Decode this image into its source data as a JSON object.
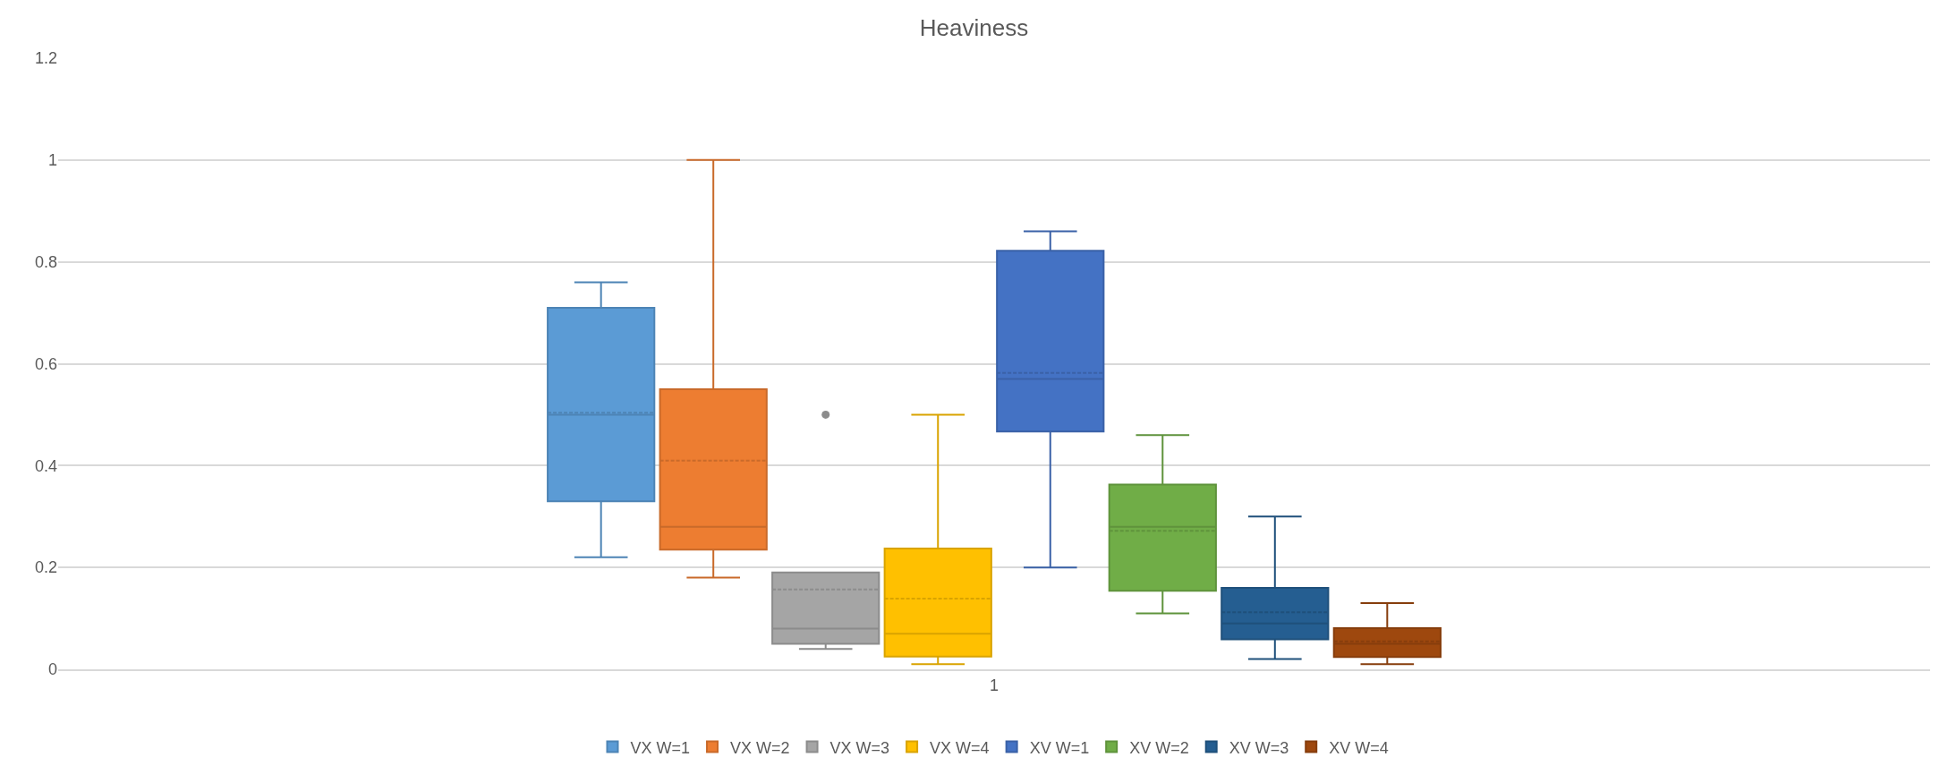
{
  "chart_data": {
    "type": "box",
    "title": "Heaviness",
    "categories": [
      "1"
    ],
    "ylim": [
      0,
      1.2
    ],
    "yticks": [
      0,
      0.2,
      0.4,
      0.6,
      0.8,
      1,
      1.2
    ],
    "grid": "y",
    "legend": "bottom",
    "series": [
      {
        "name": "VX W=1",
        "color": "#5b9bd5",
        "boxes": [
          {
            "low": 0.22,
            "q1": 0.33,
            "median": 0.5,
            "q3": 0.71,
            "high": 0.76,
            "mean": 0.504
          }
        ]
      },
      {
        "name": "VX W=2",
        "color": "#ed7d31",
        "boxes": [
          {
            "low": 0.18,
            "q1": 0.235,
            "median": 0.28,
            "q3": 0.55,
            "high": 1.0,
            "mean": 0.41
          }
        ]
      },
      {
        "name": "VX W=3",
        "color": "#a5a5a5",
        "boxes": [
          {
            "low": 0.04,
            "q1": 0.05,
            "median": 0.08,
            "q3": 0.19,
            "high": 0.19,
            "mean": 0.157,
            "outliers": [
              0.5
            ]
          }
        ]
      },
      {
        "name": "VX W=4",
        "color": "#ffc000",
        "boxes": [
          {
            "low": 0.01,
            "q1": 0.025,
            "median": 0.07,
            "q3": 0.237,
            "high": 0.5,
            "mean": 0.139
          }
        ]
      },
      {
        "name": "XV W=1",
        "color": "#4472c4",
        "boxes": [
          {
            "low": 0.2,
            "q1": 0.467,
            "median": 0.57,
            "q3": 0.822,
            "high": 0.86,
            "mean": 0.582
          }
        ]
      },
      {
        "name": "XV W=2",
        "color": "#70ad47",
        "boxes": [
          {
            "low": 0.11,
            "q1": 0.154,
            "median": 0.28,
            "q3": 0.363,
            "high": 0.46,
            "mean": 0.272
          }
        ]
      },
      {
        "name": "XV W=3",
        "color": "#255e91",
        "boxes": [
          {
            "low": 0.02,
            "q1": 0.059,
            "median": 0.09,
            "q3": 0.16,
            "high": 0.3,
            "mean": 0.112
          }
        ]
      },
      {
        "name": "XV W=4",
        "color": "#9e480e",
        "boxes": [
          {
            "low": 0.01,
            "q1": 0.024,
            "median": 0.05,
            "q3": 0.081,
            "high": 0.13,
            "mean": 0.055
          }
        ]
      }
    ]
  }
}
